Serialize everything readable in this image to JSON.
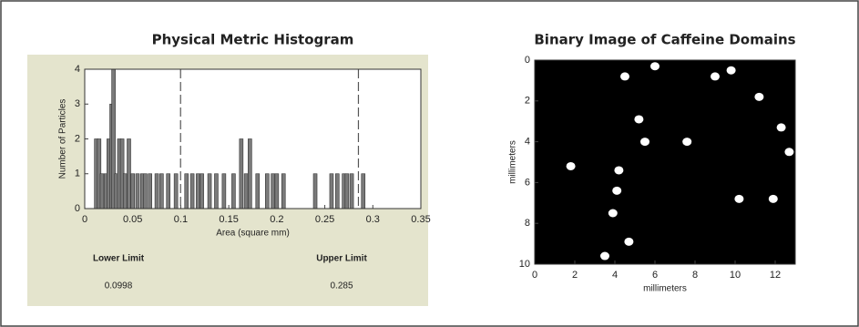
{
  "chart_data": [
    {
      "type": "bar",
      "title": "Physical Metric Histogram",
      "xlabel": "Area (square mm)",
      "ylabel": "Number of Particles",
      "x": [
        0.012,
        0.015,
        0.018,
        0.022,
        0.025,
        0.028,
        0.03,
        0.033,
        0.036,
        0.039,
        0.042,
        0.046,
        0.05,
        0.055,
        0.06,
        0.063,
        0.068,
        0.075,
        0.08,
        0.087,
        0.095,
        0.106,
        0.112,
        0.118,
        0.122,
        0.13,
        0.137,
        0.145,
        0.155,
        0.163,
        0.168,
        0.172,
        0.18,
        0.19,
        0.196,
        0.2,
        0.207,
        0.24,
        0.257,
        0.263,
        0.27,
        0.273,
        0.278,
        0.29
      ],
      "values": [
        2,
        2,
        1,
        1,
        2,
        3,
        4,
        1,
        2,
        2,
        1,
        2,
        1,
        1,
        1,
        1,
        1,
        1,
        1,
        1,
        1,
        1,
        1,
        1,
        1,
        1,
        1,
        1,
        1,
        2,
        1,
        2,
        1,
        1,
        1,
        1,
        1,
        1,
        1,
        1,
        1,
        1,
        1,
        1
      ],
      "color": "#7a7a7a",
      "xlim": [
        0,
        0.35
      ],
      "xticks": [
        0,
        0.05,
        0.1,
        0.15,
        0.2,
        0.25,
        0.3,
        0.35
      ],
      "ylim": [
        0,
        4
      ],
      "yticks": [
        0,
        1,
        2,
        3,
        4
      ],
      "limits": [
        {
          "name": "Lower Limit",
          "value": 0.0998
        },
        {
          "name": "Upper Limit",
          "value": 0.285
        }
      ]
    },
    {
      "type": "scatter",
      "title": "Binary Image of Caffeine Domains",
      "xlabel": "millimeters",
      "ylabel": "millimeters",
      "x": [
        4.5,
        6.0,
        9.0,
        9.8,
        11.2,
        12.3,
        12.7,
        5.2,
        5.5,
        7.6,
        1.8,
        4.2,
        4.1,
        3.9,
        4.7,
        3.5,
        10.2,
        11.9
      ],
      "values": [
        0.8,
        0.3,
        0.8,
        0.5,
        1.8,
        3.3,
        4.5,
        2.9,
        4.0,
        4.0,
        5.2,
        5.4,
        6.4,
        7.5,
        8.9,
        9.6,
        6.8,
        6.8
      ],
      "color": "#ffffff",
      "background": "#000000",
      "xlim": [
        0,
        13
      ],
      "xticks": [
        0,
        2,
        4,
        6,
        8,
        10,
        12
      ],
      "ylim": [
        10,
        0
      ],
      "yticks": [
        0,
        2,
        4,
        6,
        8,
        10
      ]
    }
  ]
}
